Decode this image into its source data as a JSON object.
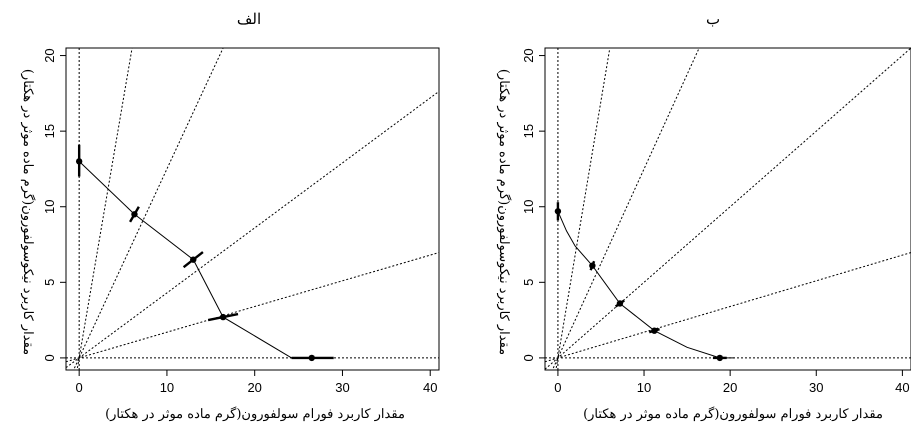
{
  "chart_data": [
    {
      "type": "line",
      "panel_title": "الف",
      "xlabel": "مقدار کاربرد فورام سولفورون(گرم ماده موثر در هکتار)",
      "ylabel": "مقدار کاربرد نیکوسولفورون(گرم ماده موثر در هکتار)",
      "xlim": [
        -1.5,
        41
      ],
      "ylim": [
        -0.8,
        20.5
      ],
      "xticks": [
        "0",
        "10",
        "20",
        "30",
        "40"
      ],
      "yticks": [
        "0",
        "5",
        "10",
        "15",
        "20"
      ],
      "grid": false,
      "rays_slopes": [
        3.4,
        1.25,
        0.43,
        0.17
      ],
      "reference_lines": {
        "x": 0,
        "y": 0
      },
      "curve": {
        "x": [
          0,
          6.3,
          13.0,
          16.4,
          24.2
        ],
        "y": [
          13.0,
          9.5,
          6.5,
          2.7,
          0
        ]
      },
      "curve_tail": {
        "x": [
          24.2,
          26.5
        ],
        "y": [
          0,
          0
        ]
      },
      "points": [
        {
          "x": 0,
          "y": 13.0
        },
        {
          "x": 6.3,
          "y": 9.5
        },
        {
          "x": 13.0,
          "y": 6.5
        },
        {
          "x": 16.4,
          "y": 2.7
        },
        {
          "x": 26.5,
          "y": 0
        }
      ],
      "error_bars": [
        {
          "x1": 0,
          "y1": 12.0,
          "x2": 0,
          "y2": 14.1
        },
        {
          "x1": 5.8,
          "y1": 9.0,
          "x2": 6.8,
          "y2": 10.0
        },
        {
          "x1": 11.9,
          "y1": 6.0,
          "x2": 14.1,
          "y2": 7.0
        },
        {
          "x1": 14.7,
          "y1": 2.5,
          "x2": 18.1,
          "y2": 2.9
        },
        {
          "x1": 24.2,
          "y1": 0,
          "x2": 29.0,
          "y2": 0
        }
      ]
    },
    {
      "type": "line",
      "panel_title": "ب",
      "xlabel": "مقدار کاربرد فورام سولفورون(گرم ماده موثر در هکتار)",
      "ylabel": "مقدار کاربرد نیکوسولفورون(گرم ماده موثر در هکتار)",
      "xlim": [
        -1.5,
        41
      ],
      "ylim": [
        -0.8,
        20.5
      ],
      "xticks": [
        "0",
        "10",
        "20",
        "30",
        "40"
      ],
      "yticks": [
        "0",
        "5",
        "10",
        "15",
        "20"
      ],
      "grid": false,
      "rays_slopes": [
        3.4,
        1.25,
        0.5,
        0.17
      ],
      "reference_lines": {
        "x": 0,
        "y": 0
      },
      "curve": {
        "x": [
          0,
          1,
          2,
          4,
          7.2,
          11.2,
          15,
          18.8
        ],
        "y": [
          9.7,
          8.4,
          7.4,
          6.1,
          3.6,
          1.8,
          0.7,
          0
        ]
      },
      "curve_tail": {
        "x": [
          18.8,
          20.5
        ],
        "y": [
          0,
          0
        ]
      },
      "points": [
        {
          "x": 0,
          "y": 9.7
        },
        {
          "x": 4.0,
          "y": 6.1
        },
        {
          "x": 7.2,
          "y": 3.6
        },
        {
          "x": 11.2,
          "y": 1.8
        },
        {
          "x": 18.8,
          "y": 0
        }
      ],
      "error_bars": [
        {
          "x1": 0,
          "y1": 9.1,
          "x2": 0,
          "y2": 10.3
        },
        {
          "x1": 3.8,
          "y1": 5.8,
          "x2": 4.2,
          "y2": 6.4
        },
        {
          "x1": 6.7,
          "y1": 3.4,
          "x2": 7.7,
          "y2": 3.8
        },
        {
          "x1": 10.6,
          "y1": 1.7,
          "x2": 11.8,
          "y2": 1.9
        },
        {
          "x1": 18.0,
          "y1": 0,
          "x2": 19.6,
          "y2": 0
        }
      ]
    }
  ]
}
